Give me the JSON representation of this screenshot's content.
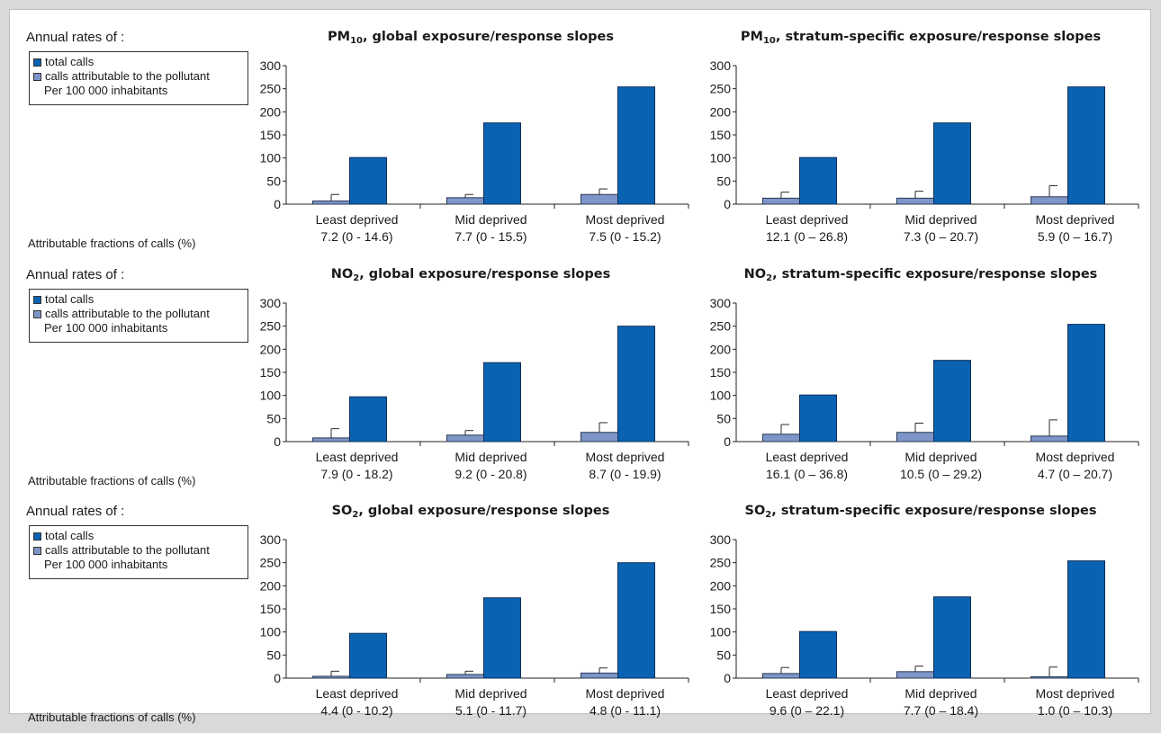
{
  "colors": {
    "total": "#0a62b2",
    "attributable": "#7d95c7",
    "axis": "#222222"
  },
  "legend": {
    "title": "Annual rates of :",
    "items": [
      "total calls",
      "calls attributable to the pollutant"
    ],
    "note": "Per 100 000 inhabitants",
    "af_label": "Attributable fractions of calls (%)"
  },
  "chart_data": [
    {
      "type": "bar",
      "title_main": "PM",
      "title_sub": "10",
      "title_rest": ", global exposure/response slopes",
      "categories": [
        "Least deprived",
        "Mid deprived",
        "Most deprived"
      ],
      "fractions": [
        "7.2 (0 - 14.6)",
        "7.7 (0 - 15.5)",
        "7.5 (0 - 15.2)"
      ],
      "yticks": [
        0,
        50,
        100,
        150,
        200,
        250,
        300
      ],
      "ylim": [
        0,
        300
      ],
      "series": [
        {
          "name": "calls attributable to the pollutant",
          "values": [
            7,
            14,
            21
          ],
          "err_upper": [
            21,
            21,
            33
          ]
        },
        {
          "name": "total calls",
          "values": [
            101,
            176,
            254
          ]
        }
      ]
    },
    {
      "type": "bar",
      "title_main": "PM",
      "title_sub": "10",
      "title_rest": ", stratum-specific exposure/response slopes",
      "categories": [
        "Least deprived",
        "Mid deprived",
        "Most deprived"
      ],
      "fractions": [
        "12.1 (0 – 26.8)",
        "7.3 (0 – 20.7)",
        "5.9 (0 – 16.7)"
      ],
      "yticks": [
        0,
        50,
        100,
        150,
        200,
        250,
        300
      ],
      "ylim": [
        0,
        300
      ],
      "series": [
        {
          "name": "calls attributable to the pollutant",
          "values": [
            13,
            13,
            16
          ],
          "err_upper": [
            26,
            28,
            40
          ]
        },
        {
          "name": "total calls",
          "values": [
            101,
            176,
            254
          ]
        }
      ]
    },
    {
      "type": "bar",
      "title_main": "NO",
      "title_sub": "2",
      "title_rest": ", global exposure/response slopes",
      "categories": [
        "Least deprived",
        "Mid deprived",
        "Most deprived"
      ],
      "fractions": [
        "7.9 (0 - 18.2)",
        "9.2 (0 - 20.8)",
        "8.7 (0 - 19.9)"
      ],
      "yticks": [
        0,
        50,
        100,
        150,
        200,
        250,
        300
      ],
      "ylim": [
        0,
        300
      ],
      "series": [
        {
          "name": "calls attributable to the pollutant",
          "values": [
            8,
            14,
            20
          ],
          "err_upper": [
            28,
            24,
            41
          ]
        },
        {
          "name": "total calls",
          "values": [
            97,
            171,
            250
          ]
        }
      ]
    },
    {
      "type": "bar",
      "title_main": "NO",
      "title_sub": "2",
      "title_rest": ", stratum-specific exposure/response slopes",
      "categories": [
        "Least deprived",
        "Mid deprived",
        "Most deprived"
      ],
      "fractions": [
        "16.1 (0 – 36.8)",
        "10.5 (0 – 29.2)",
        "4.7 (0 – 20.7)"
      ],
      "yticks": [
        0,
        50,
        100,
        150,
        200,
        250,
        300
      ],
      "ylim": [
        0,
        300
      ],
      "series": [
        {
          "name": "calls attributable to the pollutant",
          "values": [
            16,
            20,
            12
          ],
          "err_upper": [
            37,
            40,
            47
          ]
        },
        {
          "name": "total calls",
          "values": [
            101,
            176,
            254
          ]
        }
      ]
    },
    {
      "type": "bar",
      "title_main": "SO",
      "title_sub": "2",
      "title_rest": ", global exposure/response slopes",
      "categories": [
        "Least deprived",
        "Mid deprived",
        "Most deprived"
      ],
      "fractions": [
        "4.4 (0 - 10.2)",
        "5.1 (0 - 11.7)",
        "4.8 (0 - 11.1)"
      ],
      "yticks": [
        0,
        50,
        100,
        150,
        200,
        250,
        300
      ],
      "ylim": [
        0,
        300
      ],
      "series": [
        {
          "name": "calls attributable to the pollutant",
          "values": [
            4,
            8,
            11
          ],
          "err_upper": [
            15,
            15,
            22
          ]
        },
        {
          "name": "total calls",
          "values": [
            97,
            174,
            250
          ]
        }
      ]
    },
    {
      "type": "bar",
      "title_main": "SO",
      "title_sub": "2",
      "title_rest": ", stratum-specific exposure/response slopes",
      "categories": [
        "Least deprived",
        "Mid deprived",
        "Most deprived"
      ],
      "fractions": [
        "9.6 (0 – 22.1)",
        "7.7 (0 – 18.4)",
        "1.0 (0 – 10.3)"
      ],
      "yticks": [
        0,
        50,
        100,
        150,
        200,
        250,
        300
      ],
      "ylim": [
        0,
        300
      ],
      "series": [
        {
          "name": "calls attributable to the pollutant",
          "values": [
            10,
            14,
            3
          ],
          "err_upper": [
            23,
            26,
            24
          ]
        },
        {
          "name": "total calls",
          "values": [
            101,
            176,
            254
          ]
        }
      ]
    }
  ]
}
